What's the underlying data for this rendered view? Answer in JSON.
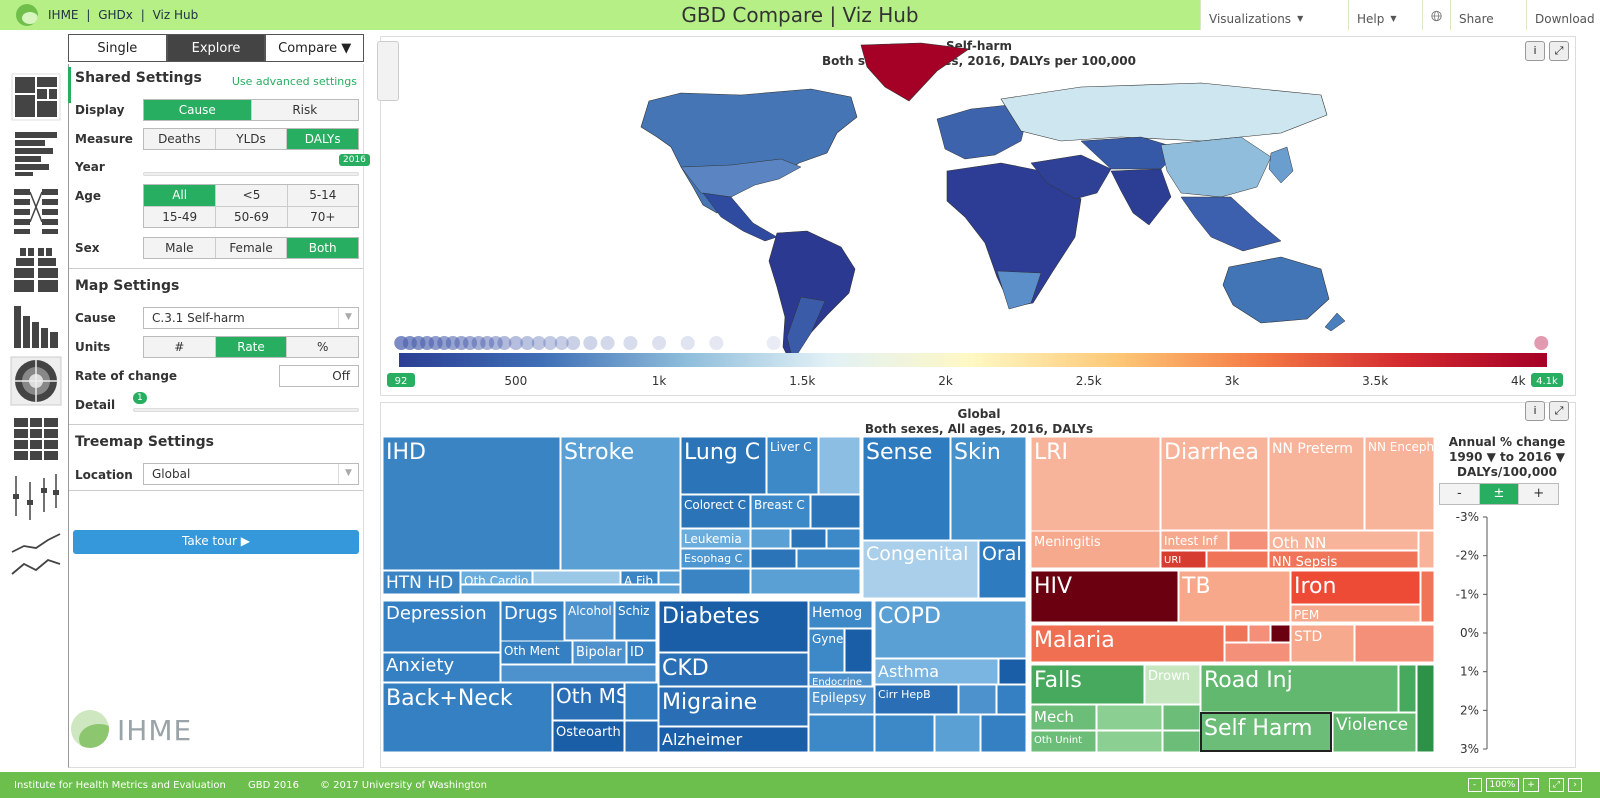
{
  "header": {
    "brand_links": [
      "IHME",
      "|",
      "GHDx",
      "|",
      "Viz Hub"
    ],
    "title": "GBD Compare | Viz Hub",
    "menu": [
      {
        "label": "Visualizations",
        "caret": "▼"
      },
      {
        "label": "Help",
        "caret": "▼"
      },
      {
        "label": "",
        "icon": "globe-icon"
      },
      {
        "label": "Share"
      },
      {
        "label": "Download"
      }
    ]
  },
  "panel": {
    "tabs": [
      "Single",
      "Explore",
      "Compare ▼"
    ],
    "active_tab": "Explore",
    "shared_title": "Shared Settings",
    "advanced_link": "Use advanced settings",
    "display": {
      "label": "Display",
      "options": [
        "Cause",
        "Risk"
      ],
      "selected": "Cause"
    },
    "measure": {
      "label": "Measure",
      "options": [
        "Deaths",
        "YLDs",
        "DALYs"
      ],
      "selected": "DALYs"
    },
    "year": {
      "label": "Year",
      "value": "2016"
    },
    "age": {
      "label": "Age",
      "options": [
        "All",
        "<5",
        "5-14",
        "15-49",
        "50-69",
        "70+"
      ],
      "selected": "All"
    },
    "sex": {
      "label": "Sex",
      "options": [
        "Male",
        "Female",
        "Both"
      ],
      "selected": "Both"
    },
    "map_title": "Map Settings",
    "cause": {
      "label": "Cause",
      "value": "C.3.1 Self-harm"
    },
    "units": {
      "label": "Units",
      "options": [
        "#",
        "Rate",
        "%"
      ],
      "selected": "Rate"
    },
    "rate_of_change": {
      "label": "Rate of change",
      "value": "Off"
    },
    "detail": {
      "label": "Detail",
      "value": "1"
    },
    "treemap_title": "Treemap Settings",
    "location": {
      "label": "Location",
      "value": "Global"
    },
    "tour_button": "Take tour ▶",
    "logo_text": "IHME"
  },
  "map": {
    "title": "Self-harm",
    "subtitle": "Both sexes, All ages, 2016, DALYs per 100,000",
    "info_btn": "i",
    "expand_btn": "⤢",
    "scale": {
      "min_label": "92",
      "max_label": "4.1k",
      "ticks": [
        {
          "label": "500",
          "value": 500
        },
        {
          "label": "1k",
          "value": 1000
        },
        {
          "label": "1.5k",
          "value": 1500
        },
        {
          "label": "2k",
          "value": 2000
        },
        {
          "label": "2.5k",
          "value": 2500
        },
        {
          "label": "3k",
          "value": 3000
        },
        {
          "label": "3.5k",
          "value": 3500
        },
        {
          "label": "4k",
          "value": 4000
        }
      ],
      "min": 92,
      "max": 4100,
      "colors": [
        "#2c3e93",
        "#3f6fb6",
        "#8fbddb",
        "#e2f1f6",
        "#fff8c3",
        "#fdc877",
        "#f47a45",
        "#d3292f",
        "#a50026"
      ]
    }
  },
  "treemap": {
    "title": "Global",
    "subtitle": "Both sexes, All ages, 2016, DALYs",
    "info_btn": "i",
    "expand_btn": "⤢",
    "labels": {
      "ihd": "IHD",
      "stroke": "Stroke",
      "lung": "Lung C",
      "liver": "Liver C",
      "colorect": "Colorect C",
      "breast": "Breast C",
      "leukemia": "Leukemia",
      "esophag": "Esophag C",
      "htnhd": "HTN HD",
      "othcardio": "Oth Cardio",
      "afib": "A Fib",
      "sense": "Sense",
      "skin": "Skin",
      "congenital": "Congenital",
      "oral": "Oral",
      "depression": "Depression",
      "drugs": "Drugs",
      "alcohol": "Alcohol",
      "schiz": "Schiz",
      "anxiety": "Anxiety",
      "othment": "Oth Ment",
      "bipolar": "Bipolar",
      "id": "ID",
      "diabetes": "Diabetes",
      "hemog": "Hemog",
      "gyne": "Gyne",
      "endocrine": "Endocrine",
      "ckd": "CKD",
      "copd": "COPD",
      "asthma": "Asthma",
      "cirrhepb": "Cirr HepB",
      "backneck": "Back+Neck",
      "othmsk": "Oth MSK",
      "osteoarth": "Osteoarth",
      "migraine": "Migraine",
      "epilepsy": "Epilepsy",
      "alzheimer": "Alzheimer",
      "lri": "LRI",
      "diarrhea": "Diarrhea",
      "nnpreterm": "NN Preterm",
      "nnenceph": "NN Enceph",
      "meningitis": "Meningitis",
      "intestinf": "Intest Inf",
      "uri": "URI",
      "othnn": "Oth NN",
      "nnsepsis": "NN Sepsis",
      "hiv": "HIV",
      "tb": "TB",
      "iron": "Iron",
      "pem": "PEM",
      "malaria": "Malaria",
      "std": "STD",
      "falls": "Falls",
      "drown": "Drown",
      "roadinj": "Road Inj",
      "mech": "Mech",
      "othunint": "Oth Unint",
      "selfharm": "Self Harm",
      "violence": "Violence"
    },
    "legend": {
      "title_lines": [
        "Annual % change",
        "1990 ▼ to 2016 ▼",
        "DALYs/100,000"
      ],
      "buttons": [
        "-",
        "±",
        "+"
      ],
      "selected": "±",
      "ticks": [
        "-3%",
        "-2%",
        "-1%",
        "0%",
        "1%",
        "2%",
        "3%"
      ]
    }
  },
  "footer": {
    "org": "Institute for Health Metrics and Evaluation",
    "gbd": "GBD 2016",
    "copyright": "© 2017 University of Washington",
    "zoom": "100%",
    "zoom_minus": "-",
    "zoom_plus": "+",
    "fullscreen": "⤢",
    "next": "›"
  }
}
